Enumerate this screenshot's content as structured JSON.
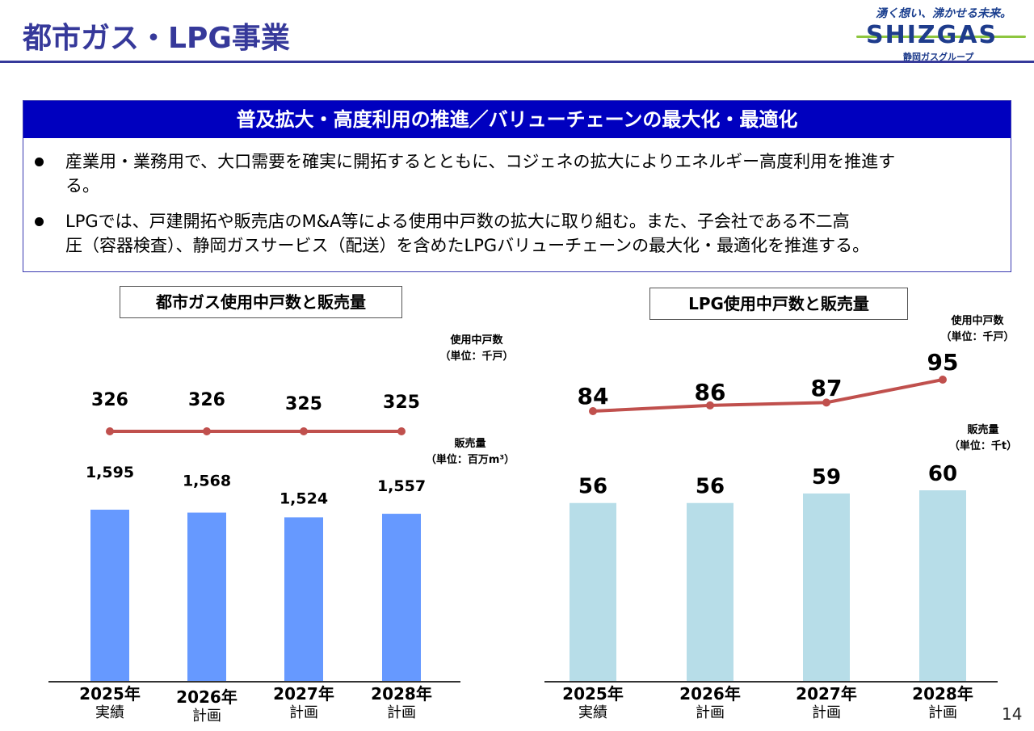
{
  "header": {
    "title": "都市ガス・LPG事業",
    "logo": {
      "tagline": "湧く想い、沸かせる未来。",
      "brand": "SHIZGAS",
      "subtitle": "静岡ガスグループ"
    }
  },
  "summary": {
    "banner": "普及拡大・高度利用の推進／バリューチェーンの最大化・最適化",
    "bullets": [
      {
        "line1": "産業用・業務用で、大口需要を確実に開拓するとともに、コジェネの拡大によりエネルギー高度利用を推進す",
        "line2": "る。"
      },
      {
        "line1": "LPGでは、戸建開拓や販売店のM&A等による使用中戸数の拡大に取り組む。また、子会社である不二高",
        "line2": "圧（容器検査）、静岡ガスサービス（配送）を含めたLPGバリューチェーンの最大化・最適化を推進する。"
      }
    ]
  },
  "colors": {
    "title": "#36399a",
    "banner": "#0000bf",
    "city_gas_bar": "#6699ff",
    "lpg_bar": "#b7dde8",
    "line": "#c0504d"
  },
  "chart_data": [
    {
      "type": "bar",
      "title": "都市ガス使用中戸数と販売量",
      "categories": [
        "2025年",
        "2026年",
        "2027年",
        "2028年"
      ],
      "category_sublabels": [
        "実績",
        "計画",
        "計画",
        "計画"
      ],
      "series": [
        {
          "name": "販売量",
          "unit_label": "販売量",
          "unit": "（単位：百万m³）",
          "kind": "bar",
          "values": [
            1595,
            1568,
            1524,
            1557
          ],
          "labels": [
            "1,595",
            "1,568",
            "1,524",
            "1,557"
          ]
        },
        {
          "name": "使用中戸数",
          "unit_label": "使用中戸数",
          "unit": "（単位：千戸）",
          "kind": "line",
          "values": [
            326,
            326,
            325,
            325
          ],
          "labels": [
            "326",
            "326",
            "325",
            "325"
          ]
        }
      ],
      "xlabel": "",
      "ylabel": "",
      "grid": false
    },
    {
      "type": "bar",
      "title": "LPG使用中戸数と販売量",
      "categories": [
        "2025年",
        "2026年",
        "2027年",
        "2028年"
      ],
      "category_sublabels": [
        "実績",
        "計画",
        "計画",
        "計画"
      ],
      "series": [
        {
          "name": "販売量",
          "unit_label": "販売量",
          "unit": "（単位：千t）",
          "kind": "bar",
          "values": [
            56,
            56,
            59,
            60
          ],
          "labels": [
            "56",
            "56",
            "59",
            "60"
          ]
        },
        {
          "name": "使用中戸数",
          "unit_label": "使用中戸数",
          "unit": "（単位：千戸）",
          "kind": "line",
          "values": [
            84,
            86,
            87,
            95
          ],
          "labels": [
            "84",
            "86",
            "87",
            "95"
          ]
        }
      ],
      "xlabel": "",
      "ylabel": "",
      "grid": false
    }
  ],
  "footer": {
    "page_number": "14"
  }
}
